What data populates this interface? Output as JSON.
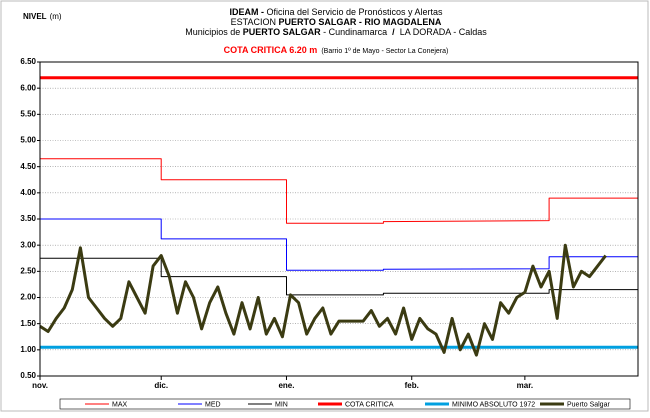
{
  "chart_data": {
    "type": "line",
    "title_lines": [
      [
        {
          "text": "IDEAM - ",
          "bold": true
        },
        {
          "text": "Oficina del Servicio de Pronósticos y Alertas",
          "bold": false
        }
      ],
      [
        {
          "text": "ESTACION ",
          "bold": false
        },
        {
          "text": "PUERTO SALGAR - RIO MAGDALENA",
          "bold": true
        }
      ],
      [
        {
          "text": "Municipios de ",
          "bold": false
        },
        {
          "text": "PUERTO SALGAR",
          "bold": true
        },
        {
          "text": " - Cundinamarca ",
          "bold": false
        },
        {
          "text": " / ",
          "bold": true
        },
        {
          "text": " LA DORADA - Caldas",
          "bold": false
        }
      ]
    ],
    "subtitle": "COTA CRITICA 6.20 m",
    "subtitle_note": "(Barrio 1º de Mayo - Sector La Conejera)",
    "y_label": "NIVEL",
    "y_unit": "(m)",
    "ylim": [
      0.5,
      6.5
    ],
    "yticks": [
      {
        "value": 0.5,
        "label": "0.50"
      },
      {
        "value": 1,
        "label": "1.00"
      },
      {
        "value": 1.5,
        "label": "1.50"
      },
      {
        "value": 2,
        "label": "2.00"
      },
      {
        "value": 2.5,
        "label": "2.50"
      },
      {
        "value": 3,
        "label": "3.00"
      },
      {
        "value": 3.5,
        "label": "3.50"
      },
      {
        "value": 4,
        "label": "4.00"
      },
      {
        "value": 4.5,
        "label": "4.50"
      },
      {
        "value": 5,
        "label": "5.00"
      },
      {
        "value": 5.5,
        "label": "5.50"
      },
      {
        "value": 6,
        "label": "6.00"
      },
      {
        "value": 6.5,
        "label": "6.50"
      }
    ],
    "xlim": [
      0,
      148
    ],
    "xticks": [
      {
        "value": 0,
        "label": "nov."
      },
      {
        "value": 30,
        "label": "dic."
      },
      {
        "value": 61,
        "label": "ene."
      },
      {
        "value": 92,
        "label": "feb."
      },
      {
        "value": 120,
        "label": "mar."
      }
    ],
    "grid": true,
    "legend": "bottom",
    "series": [
      {
        "name": "MAX",
        "color": "#ff0000",
        "width": 1,
        "x": [
          0,
          30,
          30,
          61,
          61,
          85,
          85,
          126,
          126,
          148
        ],
        "values": [
          4.65,
          4.65,
          4.25,
          4.25,
          3.42,
          3.42,
          3.45,
          3.47,
          3.9,
          3.9
        ]
      },
      {
        "name": "MED",
        "color": "#0000ff",
        "width": 1,
        "x": [
          0,
          30,
          30,
          61,
          61,
          85,
          85,
          126,
          126,
          148
        ],
        "values": [
          3.5,
          3.5,
          3.12,
          3.12,
          2.52,
          2.52,
          2.54,
          2.55,
          2.78,
          2.78
        ]
      },
      {
        "name": "MIN",
        "color": "#000000",
        "width": 1,
        "x": [
          0,
          30,
          30,
          61,
          61,
          85,
          85,
          126,
          126,
          148
        ],
        "values": [
          2.75,
          2.75,
          2.4,
          2.4,
          2.05,
          2.05,
          2.08,
          2.08,
          2.15,
          2.15
        ]
      },
      {
        "name": "COTA CRITICA",
        "color": "#ff0000",
        "width": 3,
        "x": [
          0,
          148
        ],
        "values": [
          6.2,
          6.2
        ]
      },
      {
        "name": "MINIMO ABSOLUTO 1972",
        "color": "#00a0e0",
        "width": 3,
        "x": [
          0,
          148
        ],
        "values": [
          1.05,
          1.05
        ]
      },
      {
        "name": "Puerto Salgar",
        "color": "#3b3b12",
        "width": 3,
        "x": [
          0,
          2,
          4,
          6,
          8,
          10,
          12,
          14,
          16,
          18,
          20,
          22,
          24,
          26,
          28,
          30,
          32,
          34,
          36,
          38,
          40,
          42,
          44,
          46,
          48,
          50,
          52,
          54,
          56,
          58,
          60,
          62,
          64,
          66,
          68,
          70,
          72,
          74,
          76,
          78,
          80,
          82,
          84,
          86,
          88,
          90,
          92,
          94,
          96,
          98,
          100,
          102,
          104,
          106,
          108,
          110,
          112,
          114,
          116,
          118,
          120,
          122,
          124,
          126,
          128,
          130,
          132,
          134,
          136,
          138,
          140
        ],
        "values": [
          1.45,
          1.35,
          1.6,
          1.8,
          2.15,
          2.95,
          2.0,
          1.8,
          1.6,
          1.45,
          1.6,
          2.3,
          2.0,
          1.7,
          2.6,
          2.8,
          2.4,
          1.7,
          2.3,
          2.0,
          1.4,
          1.9,
          2.2,
          1.7,
          1.3,
          1.9,
          1.4,
          2.0,
          1.3,
          1.6,
          1.25,
          2.05,
          1.9,
          1.3,
          1.6,
          1.8,
          1.3,
          1.55,
          1.55,
          1.55,
          1.55,
          1.75,
          1.45,
          1.6,
          1.3,
          1.8,
          1.2,
          1.6,
          1.4,
          1.3,
          0.95,
          1.6,
          1.0,
          1.3,
          0.9,
          1.5,
          1.2,
          1.9,
          1.7,
          2.0,
          2.1,
          2.6,
          2.2,
          2.5,
          1.6,
          3.0,
          2.2,
          2.5,
          2.4,
          2.6,
          2.8
        ]
      }
    ]
  }
}
